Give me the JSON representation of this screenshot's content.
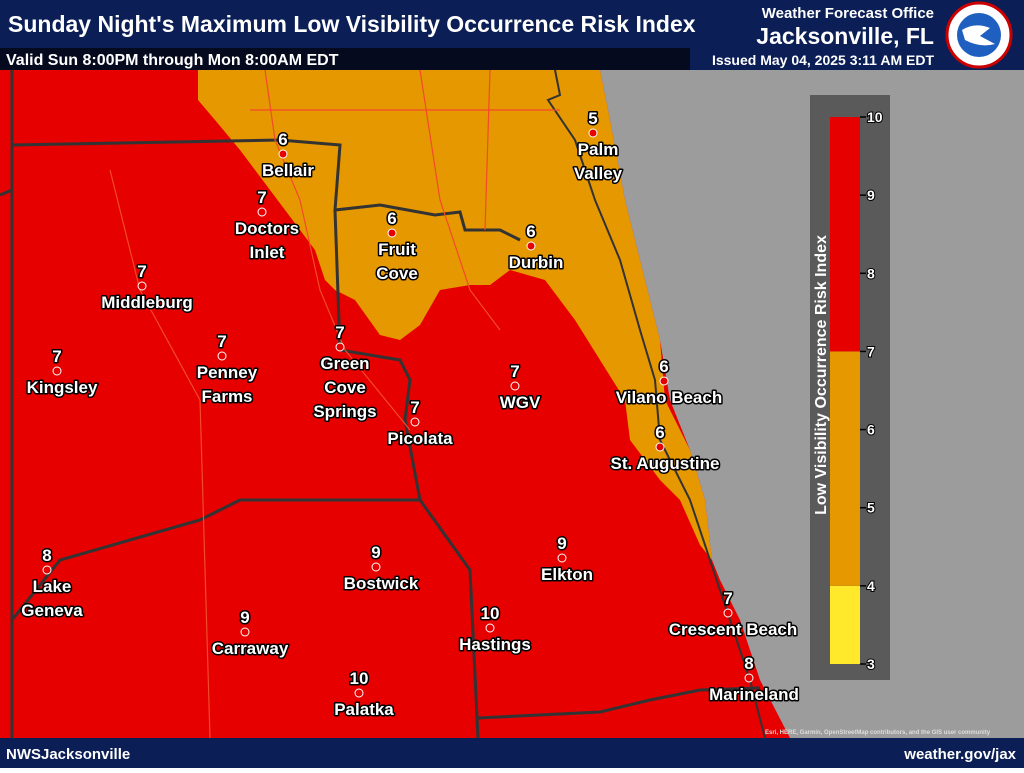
{
  "header": {
    "title": "Sunday Night's Maximum Low Visibility Occurrence Risk Index",
    "valid": "Valid Sun 8:00PM through Mon 8:00AM EDT",
    "office": "Weather Forecast Office",
    "city": "Jacksonville, FL",
    "issued": "Issued May 04, 2025 3:11 AM EDT"
  },
  "cities": [
    {
      "name": [
        "Bellair"
      ],
      "value": 6
    },
    {
      "name": [
        "Doctors",
        "Inlet"
      ],
      "value": 7
    },
    {
      "name": [
        "Middleburg"
      ],
      "value": 7
    },
    {
      "name": [
        "Fruit",
        "Cove"
      ],
      "value": 6
    },
    {
      "name": [
        "Durbin"
      ],
      "value": 6
    },
    {
      "name": [
        "Palm",
        "Valley"
      ],
      "value": 5
    },
    {
      "name": [
        "Kingsley"
      ],
      "value": 7
    },
    {
      "name": [
        "Penney",
        "Farms"
      ],
      "value": 7
    },
    {
      "name": [
        "Green",
        "Cove",
        "Springs"
      ],
      "value": 7
    },
    {
      "name": [
        "Picolata"
      ],
      "value": 7
    },
    {
      "name": [
        "WGV"
      ],
      "value": 7
    },
    {
      "name": [
        "Vilano Beach"
      ],
      "value": 6
    },
    {
      "name": [
        "St. Augustine"
      ],
      "value": 6
    },
    {
      "name": [
        "Lake",
        "Geneva"
      ],
      "value": 8
    },
    {
      "name": [
        "Bostwick"
      ],
      "value": 9
    },
    {
      "name": [
        "Elkton"
      ],
      "value": 9
    },
    {
      "name": [
        "Carraway"
      ],
      "value": 9
    },
    {
      "name": [
        "Hastings"
      ],
      "value": 10
    },
    {
      "name": [
        "Crescent Beach"
      ],
      "value": 7
    },
    {
      "name": [
        "Marineland"
      ],
      "value": 8
    },
    {
      "name": [
        "Palatka"
      ],
      "value": 10
    }
  ],
  "legend": {
    "title": "Low Visibility Occurrence Risk Index",
    "range": [
      3,
      10
    ],
    "ticks": [
      3,
      4,
      5,
      6,
      7,
      8,
      9,
      10
    ],
    "bands": [
      {
        "from": 3,
        "to": 4,
        "color": "#ffe92a"
      },
      {
        "from": 4,
        "to": 7,
        "color": "#e69800"
      },
      {
        "from": 7,
        "to": 10,
        "color": "#e60000"
      }
    ]
  },
  "footer": {
    "left": "NWSJacksonville",
    "right": "weather.gov/jax",
    "attribution": "Esri, HERE, Garmin, OpenStreetMap contributors, and the GIS user community"
  }
}
